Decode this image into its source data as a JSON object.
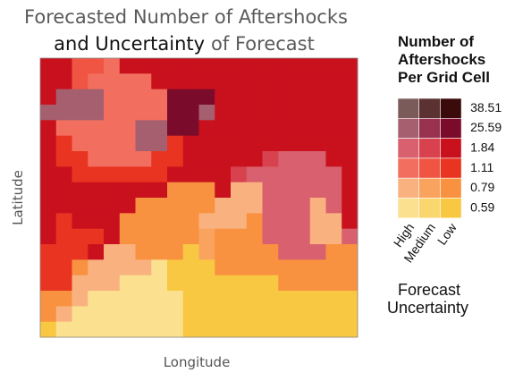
{
  "chart_data": {
    "type": "bivariate-heatmap",
    "title": {
      "line1": "Forecasted Number of Aftershocks",
      "line2_emphasis": "and Uncertainty",
      "line2_rest": "of Forecast"
    },
    "x_label": "Longitude",
    "y_label": "Latitude",
    "legend_title": [
      "Number of",
      "Aftershocks",
      "Per Grid Cell"
    ],
    "legend_subtitle": [
      "Forecast",
      "Uncertainty"
    ],
    "levels": [
      0.59,
      0.79,
      1.11,
      1.84,
      25.59,
      38.51
    ],
    "uncertainty_levels": [
      "High",
      "Medium",
      "Low"
    ],
    "colors": [
      [
        "#fbe08f",
        "#fad66e",
        "#f9c842"
      ],
      [
        "#f9b27f",
        "#f9a35f",
        "#f89240"
      ],
      [
        "#f26f5f",
        "#ef5542",
        "#e83420"
      ],
      [
        "#d9606e",
        "#d8424f",
        "#c9111e"
      ],
      [
        "#a65f6e",
        "#983250",
        "#7b0b2b"
      ],
      [
        "#7b5b5a",
        "#5b3131",
        "#3b0b0b"
      ]
    ],
    "values": [
      [
        3,
        3,
        2,
        2,
        2,
        3,
        3,
        3,
        3,
        3,
        3,
        3,
        3,
        3,
        3,
        3,
        3,
        3,
        3,
        3
      ],
      [
        3,
        3,
        2,
        2,
        2,
        2,
        2,
        3,
        3,
        3,
        3,
        3,
        3,
        3,
        3,
        3,
        3,
        3,
        3,
        3
      ],
      [
        3,
        4,
        4,
        4,
        2,
        2,
        2,
        2,
        4,
        4,
        4,
        3,
        3,
        3,
        3,
        3,
        3,
        3,
        3,
        3
      ],
      [
        4,
        4,
        4,
        4,
        2,
        2,
        2,
        2,
        4,
        4,
        4,
        3,
        3,
        3,
        3,
        3,
        3,
        3,
        3,
        3
      ],
      [
        3,
        2,
        2,
        2,
        2,
        2,
        4,
        4,
        4,
        4,
        3,
        3,
        3,
        3,
        3,
        3,
        3,
        3,
        3,
        3
      ],
      [
        3,
        2,
        2,
        2,
        2,
        2,
        4,
        4,
        2,
        3,
        3,
        3,
        3,
        3,
        3,
        3,
        3,
        3,
        3,
        3
      ],
      [
        3,
        2,
        2,
        2,
        2,
        2,
        2,
        2,
        2,
        3,
        3,
        3,
        3,
        3,
        3,
        3,
        3,
        3,
        3,
        3
      ],
      [
        3,
        3,
        2,
        2,
        2,
        2,
        2,
        2,
        3,
        3,
        3,
        3,
        3,
        3,
        3,
        3,
        3,
        3,
        3,
        3
      ],
      [
        3,
        3,
        3,
        3,
        3,
        3,
        3,
        3,
        1,
        1,
        1,
        3,
        1,
        1,
        3,
        3,
        3,
        3,
        3,
        3
      ],
      [
        3,
        3,
        3,
        3,
        3,
        3,
        1,
        1,
        1,
        1,
        1,
        1,
        1,
        1,
        3,
        3,
        3,
        1,
        3,
        3
      ],
      [
        3,
        2,
        3,
        3,
        3,
        1,
        1,
        1,
        1,
        1,
        1,
        1,
        1,
        1,
        3,
        3,
        3,
        1,
        1,
        3
      ],
      [
        3,
        2,
        2,
        2,
        3,
        1,
        1,
        1,
        1,
        1,
        1,
        1,
        1,
        1,
        3,
        3,
        3,
        1,
        1,
        3
      ],
      [
        2,
        2,
        2,
        3,
        1,
        1,
        1,
        1,
        1,
        0,
        1,
        1,
        1,
        1,
        1,
        3,
        3,
        3,
        1,
        1
      ],
      [
        2,
        2,
        1,
        1,
        1,
        1,
        1,
        0,
        0,
        0,
        0,
        1,
        1,
        1,
        1,
        1,
        1,
        1,
        1,
        1
      ],
      [
        2,
        2,
        1,
        1,
        1,
        0,
        0,
        0,
        0,
        0,
        0,
        0,
        0,
        0,
        0,
        1,
        1,
        1,
        1,
        1
      ],
      [
        1,
        1,
        1,
        0,
        0,
        0,
        0,
        0,
        0,
        0,
        0,
        0,
        0,
        0,
        0,
        0,
        0,
        0,
        0,
        0
      ],
      [
        1,
        1,
        0,
        0,
        0,
        0,
        0,
        0,
        0,
        0,
        0,
        0,
        0,
        0,
        0,
        0,
        0,
        0,
        0,
        0
      ],
      [
        0,
        0,
        0,
        0,
        0,
        0,
        0,
        0,
        0,
        0,
        0,
        0,
        0,
        0,
        0,
        0,
        0,
        0,
        0,
        0
      ]
    ],
    "uncertainty": [
      [
        2,
        2,
        1,
        1,
        0,
        2,
        2,
        2,
        2,
        2,
        2,
        2,
        2,
        2,
        2,
        2,
        2,
        2,
        2,
        2
      ],
      [
        2,
        2,
        1,
        0,
        0,
        0,
        0,
        2,
        2,
        2,
        2,
        2,
        2,
        2,
        2,
        2,
        2,
        2,
        2,
        2
      ],
      [
        2,
        0,
        0,
        0,
        0,
        0,
        0,
        0,
        2,
        2,
        2,
        2,
        2,
        2,
        2,
        2,
        2,
        2,
        2,
        2
      ],
      [
        0,
        0,
        0,
        0,
        0,
        0,
        0,
        0,
        2,
        2,
        0,
        2,
        2,
        2,
        2,
        2,
        2,
        2,
        2,
        2
      ],
      [
        2,
        0,
        0,
        0,
        0,
        0,
        0,
        0,
        2,
        2,
        2,
        2,
        2,
        2,
        2,
        2,
        2,
        2,
        2,
        2
      ],
      [
        2,
        2,
        0,
        0,
        0,
        0,
        0,
        0,
        2,
        2,
        2,
        2,
        2,
        2,
        2,
        2,
        2,
        2,
        2,
        2
      ],
      [
        2,
        2,
        2,
        0,
        0,
        0,
        0,
        2,
        2,
        2,
        2,
        2,
        2,
        2,
        1,
        0,
        0,
        0,
        2,
        2
      ],
      [
        2,
        2,
        2,
        2,
        2,
        2,
        2,
        2,
        2,
        2,
        2,
        2,
        1,
        0,
        0,
        0,
        0,
        0,
        0,
        2
      ],
      [
        2,
        2,
        2,
        2,
        2,
        2,
        2,
        2,
        2,
        2,
        2,
        2,
        0,
        0,
        0,
        0,
        0,
        0,
        0,
        2
      ],
      [
        2,
        2,
        2,
        2,
        2,
        2,
        2,
        2,
        2,
        2,
        2,
        0,
        0,
        0,
        0,
        0,
        0,
        0,
        0,
        2
      ],
      [
        2,
        2,
        2,
        2,
        2,
        2,
        2,
        2,
        2,
        2,
        0,
        0,
        0,
        2,
        0,
        0,
        0,
        0,
        0,
        2
      ],
      [
        2,
        2,
        2,
        2,
        2,
        2,
        2,
        2,
        2,
        2,
        1,
        2,
        2,
        2,
        0,
        0,
        0,
        0,
        0,
        0
      ],
      [
        2,
        2,
        2,
        2,
        0,
        0,
        2,
        2,
        2,
        2,
        1,
        2,
        2,
        2,
        2,
        0,
        0,
        0,
        2,
        2
      ],
      [
        2,
        2,
        2,
        0,
        0,
        0,
        0,
        0,
        2,
        2,
        2,
        2,
        2,
        2,
        2,
        2,
        2,
        2,
        2,
        2
      ],
      [
        2,
        2,
        0,
        0,
        0,
        0,
        0,
        0,
        2,
        2,
        2,
        2,
        2,
        2,
        2,
        2,
        2,
        2,
        2,
        2
      ],
      [
        2,
        2,
        0,
        0,
        0,
        0,
        0,
        0,
        0,
        2,
        2,
        2,
        2,
        2,
        2,
        2,
        2,
        2,
        2,
        2
      ],
      [
        2,
        0,
        0,
        0,
        0,
        0,
        0,
        0,
        0,
        2,
        2,
        2,
        2,
        2,
        2,
        2,
        2,
        2,
        2,
        2
      ],
      [
        2,
        0,
        0,
        0,
        0,
        0,
        0,
        0,
        0,
        2,
        2,
        2,
        2,
        2,
        2,
        2,
        2,
        2,
        2,
        2
      ]
    ]
  }
}
